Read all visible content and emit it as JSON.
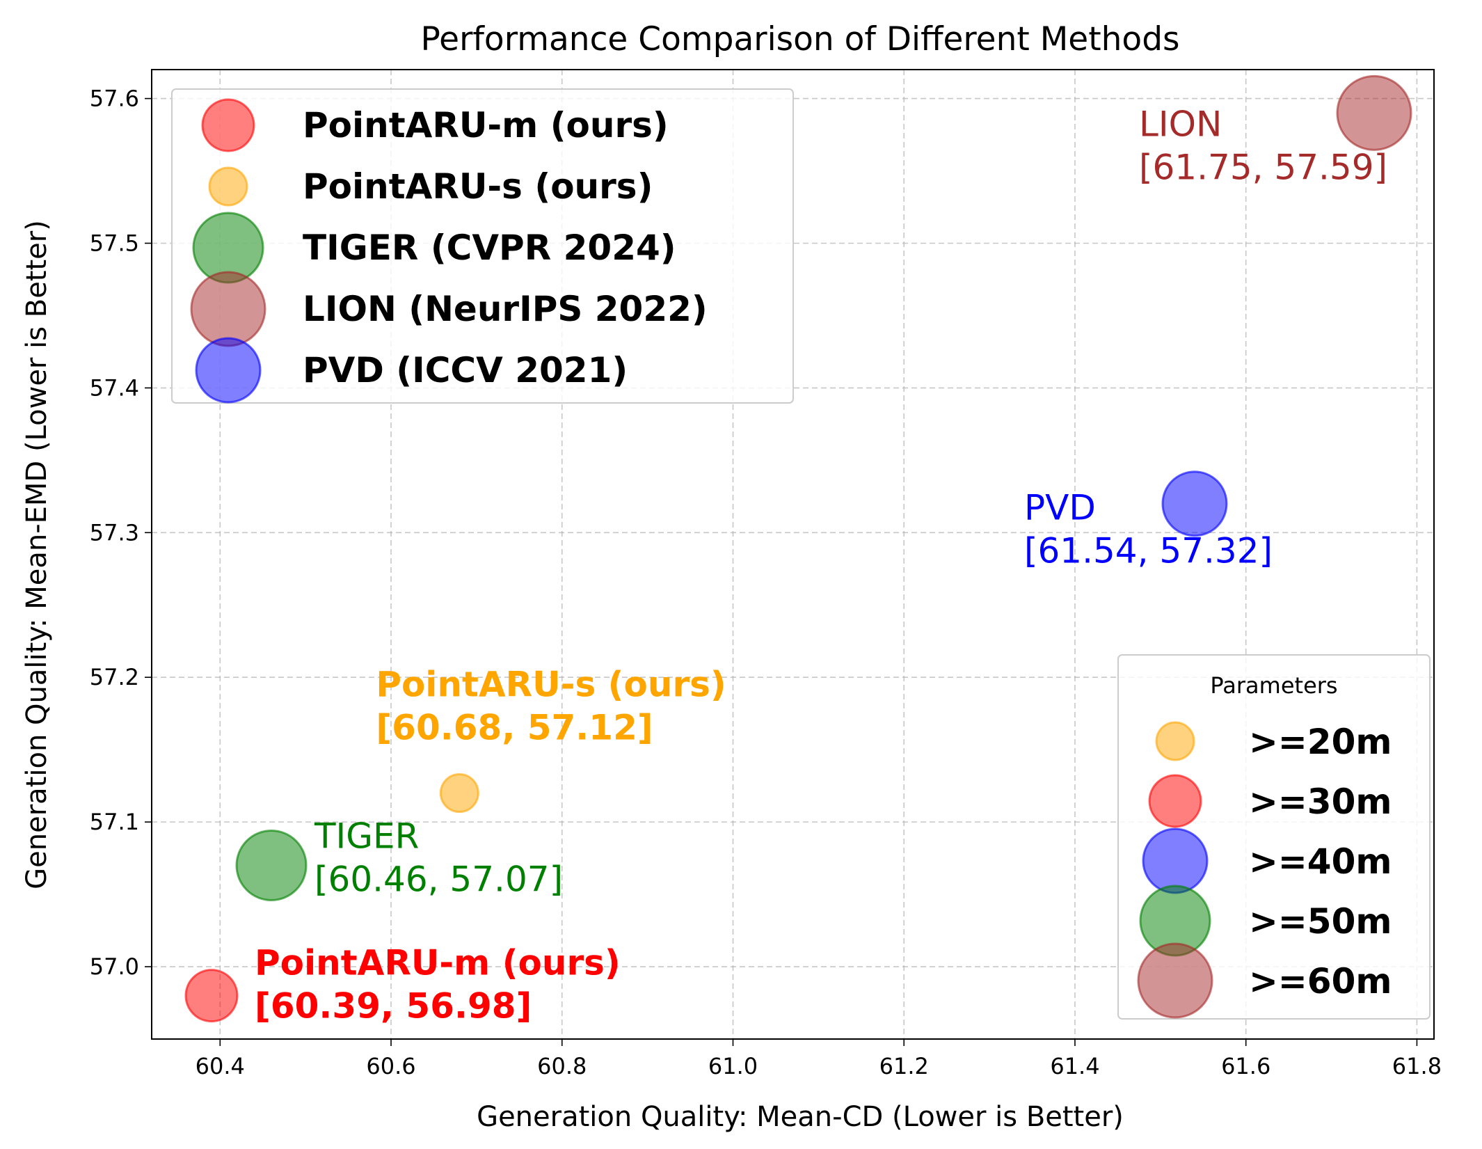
{
  "chart_data": {
    "type": "scatter",
    "title": "Performance Comparison of Different Methods",
    "xlabel": "Generation Quality: Mean-CD (Lower is Better)",
    "ylabel": "Generation Quality: Mean-EMD (Lower is Better)",
    "xlim": [
      60.32,
      61.82
    ],
    "ylim": [
      56.95,
      57.62
    ],
    "x_ticks": [
      "60.4",
      "60.6",
      "60.8",
      "61.0",
      "61.2",
      "61.4",
      "61.6",
      "61.8"
    ],
    "y_ticks": [
      "57.0",
      "57.1",
      "57.2",
      "57.3",
      "57.4",
      "57.5",
      "57.6"
    ],
    "grid": true,
    "series": [
      {
        "name": "PointARU-m (ours)",
        "x": 60.39,
        "y": 56.98,
        "color": "#ff0000",
        "size_class": ">=30m",
        "label": "PointARU-m (ours)",
        "coords": "[60.39, 56.98]",
        "label_bold": true
      },
      {
        "name": "PointARU-s (ours)",
        "x": 60.68,
        "y": 57.12,
        "color": "#ffa500",
        "size_class": ">=20m",
        "label": "PointARU-s (ours)",
        "coords": "[60.68, 57.12]",
        "label_bold": true
      },
      {
        "name": "TIGER (CVPR 2024)",
        "x": 60.46,
        "y": 57.07,
        "color": "#008000",
        "size_class": ">=50m",
        "label": "TIGER",
        "coords": "[60.46, 57.07]",
        "label_bold": false
      },
      {
        "name": "LION (NeurIPS 2022)",
        "x": 61.75,
        "y": 57.59,
        "color": "#a52a2a",
        "size_class": ">=60m",
        "label": "LION",
        "coords": "[61.75, 57.59]",
        "label_bold": false
      },
      {
        "name": "PVD (ICCV 2021)",
        "x": 61.54,
        "y": 57.32,
        "color": "#0000ff",
        "size_class": ">=40m",
        "label": "PVD",
        "coords": "[61.54, 57.32]",
        "label_bold": false
      }
    ],
    "legend": {
      "placement": "upper left"
    },
    "size_legend": {
      "title": "Parameters",
      "placement": "lower right",
      "items": [
        {
          "label": ">=20m",
          "color": "#ffa500"
        },
        {
          "label": ">=30m",
          "color": "#ff0000"
        },
        {
          "label": ">=40m",
          "color": "#0000ff"
        },
        {
          "label": ">=50m",
          "color": "#008000"
        },
        {
          "label": ">=60m",
          "color": "#a52a2a"
        }
      ]
    }
  }
}
